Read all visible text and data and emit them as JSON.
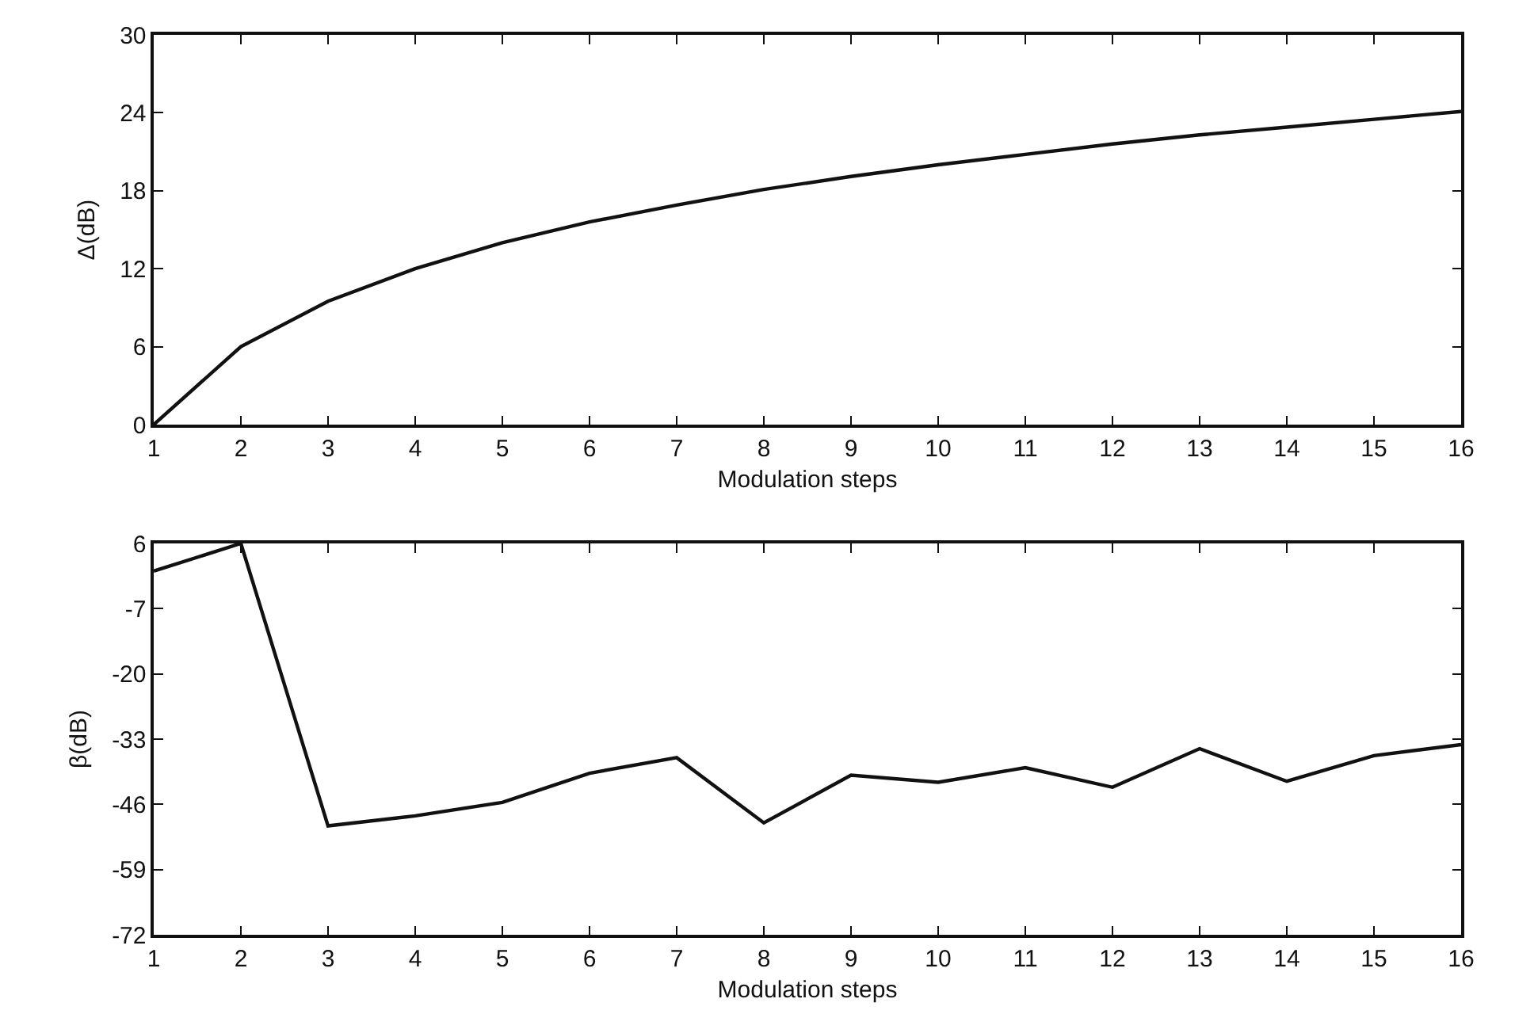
{
  "chart_data": [
    {
      "type": "line",
      "xlabel": "Modulation steps",
      "ylabel": "Δ(dB)",
      "x": [
        1,
        2,
        3,
        4,
        5,
        6,
        7,
        8,
        9,
        10,
        11,
        12,
        13,
        14,
        15,
        16
      ],
      "series": [
        {
          "color": "#111111",
          "values": [
            0,
            6.0,
            9.5,
            12.0,
            14.0,
            15.6,
            16.9,
            18.1,
            19.1,
            20.0,
            20.8,
            21.6,
            22.3,
            22.9,
            23.5,
            24.1
          ]
        }
      ],
      "xlim": [
        1,
        16
      ],
      "xticks": [
        1,
        2,
        3,
        4,
        5,
        6,
        7,
        8,
        9,
        10,
        11,
        12,
        13,
        14,
        15,
        16
      ],
      "ylim": [
        0,
        30
      ],
      "yticks": [
        0,
        6,
        12,
        18,
        24,
        30
      ],
      "grid": false
    },
    {
      "type": "line",
      "xlabel": "Modulation steps",
      "ylabel": "β(dB)",
      "x": [
        1,
        2,
        3,
        4,
        5,
        6,
        7,
        8,
        9,
        10,
        11,
        12,
        13,
        14,
        15,
        16
      ],
      "series": [
        {
          "color": "#111111",
          "values": [
            0.5,
            6,
            -50.3,
            -48.3,
            -45.6,
            -39.8,
            -36.7,
            -49.7,
            -40.2,
            -41.6,
            -38.7,
            -42.6,
            -34.9,
            -41.4,
            -36.3,
            -34.1
          ]
        }
      ],
      "xlim": [
        1,
        16
      ],
      "xticks": [
        1,
        2,
        3,
        4,
        5,
        6,
        7,
        8,
        9,
        10,
        11,
        12,
        13,
        14,
        15,
        16
      ],
      "ylim": [
        -72,
        6
      ],
      "yticks": [
        -72,
        -59,
        -46,
        -33,
        -20,
        -7,
        6
      ],
      "grid": false
    }
  ]
}
